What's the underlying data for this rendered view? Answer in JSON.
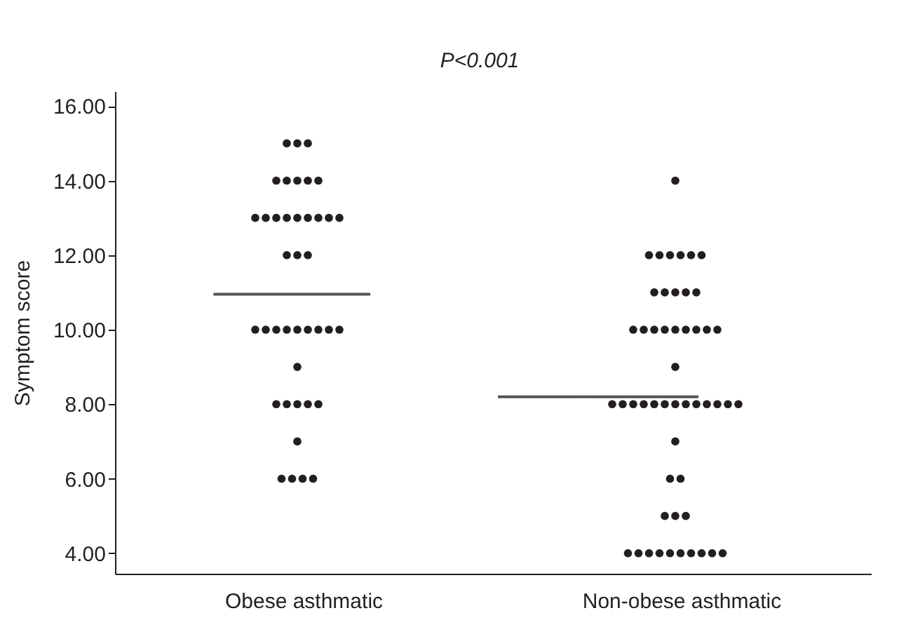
{
  "chart_data": {
    "type": "scatter",
    "ylabel": "Symptom score",
    "annotations": [
      "P<0.001"
    ],
    "categories": [
      "Obese asthmatic",
      "Non-obese asthmatic"
    ],
    "ylim": [
      3.45,
      16.4
    ],
    "yticks": [
      {
        "value": 4,
        "label": "4.00"
      },
      {
        "value": 6,
        "label": "6.00"
      },
      {
        "value": 8,
        "label": "8.00"
      },
      {
        "value": 10,
        "label": "10.00"
      },
      {
        "value": 12,
        "label": "12.00"
      },
      {
        "value": 14,
        "label": "14.00"
      },
      {
        "value": 16,
        "label": "16.00"
      }
    ],
    "grid": false,
    "legend": false,
    "marker": "circle",
    "series": [
      {
        "color": "#231f20",
        "x": [
          "Obese asthmatic",
          "Obese asthmatic",
          "Obese asthmatic",
          "Obese asthmatic",
          "Obese asthmatic",
          "Obese asthmatic",
          "Obese asthmatic",
          "Obese asthmatic",
          "Obese asthmatic",
          "Obese asthmatic",
          "Obese asthmatic",
          "Obese asthmatic",
          "Obese asthmatic",
          "Obese asthmatic",
          "Obese asthmatic",
          "Obese asthmatic",
          "Obese asthmatic",
          "Obese asthmatic",
          "Obese asthmatic",
          "Obese asthmatic",
          "Obese asthmatic",
          "Obese asthmatic",
          "Obese asthmatic",
          "Obese asthmatic",
          "Obese asthmatic",
          "Obese asthmatic",
          "Obese asthmatic",
          "Obese asthmatic",
          "Obese asthmatic",
          "Obese asthmatic",
          "Obese asthmatic",
          "Obese asthmatic",
          "Obese asthmatic",
          "Obese asthmatic",
          "Obese asthmatic",
          "Obese asthmatic",
          "Obese asthmatic",
          "Obese asthmatic",
          "Obese asthmatic",
          "Obese asthmatic"
        ],
        "values": [
          15,
          15,
          15,
          14,
          14,
          14,
          14,
          14,
          13,
          13,
          13,
          13,
          13,
          13,
          13,
          13,
          13,
          12,
          12,
          12,
          10,
          10,
          10,
          10,
          10,
          10,
          10,
          10,
          10,
          9,
          8,
          8,
          8,
          8,
          8,
          7,
          6,
          6,
          6,
          6
        ]
      },
      {
        "color": "#231f20",
        "x": [
          "Non-obese asthmatic",
          "Non-obese asthmatic",
          "Non-obese asthmatic",
          "Non-obese asthmatic",
          "Non-obese asthmatic",
          "Non-obese asthmatic",
          "Non-obese asthmatic",
          "Non-obese asthmatic",
          "Non-obese asthmatic",
          "Non-obese asthmatic",
          "Non-obese asthmatic",
          "Non-obese asthmatic",
          "Non-obese asthmatic",
          "Non-obese asthmatic",
          "Non-obese asthmatic",
          "Non-obese asthmatic",
          "Non-obese asthmatic",
          "Non-obese asthmatic",
          "Non-obese asthmatic",
          "Non-obese asthmatic",
          "Non-obese asthmatic",
          "Non-obese asthmatic",
          "Non-obese asthmatic",
          "Non-obese asthmatic",
          "Non-obese asthmatic",
          "Non-obese asthmatic",
          "Non-obese asthmatic",
          "Non-obese asthmatic",
          "Non-obese asthmatic",
          "Non-obese asthmatic",
          "Non-obese asthmatic",
          "Non-obese asthmatic",
          "Non-obese asthmatic",
          "Non-obese asthmatic",
          "Non-obese asthmatic",
          "Non-obese asthmatic",
          "Non-obese asthmatic",
          "Non-obese asthmatic",
          "Non-obese asthmatic",
          "Non-obese asthmatic",
          "Non-obese asthmatic",
          "Non-obese asthmatic",
          "Non-obese asthmatic",
          "Non-obese asthmatic",
          "Non-obese asthmatic",
          "Non-obese asthmatic",
          "Non-obese asthmatic",
          "Non-obese asthmatic",
          "Non-obese asthmatic",
          "Non-obese asthmatic",
          "Non-obese asthmatic"
        ],
        "values": [
          14,
          12,
          12,
          12,
          12,
          12,
          12,
          11,
          11,
          11,
          11,
          11,
          10,
          10,
          10,
          10,
          10,
          10,
          10,
          10,
          10,
          9,
          8,
          8,
          8,
          8,
          8,
          8,
          8,
          8,
          8,
          8,
          8,
          8,
          8,
          7,
          6,
          6,
          5,
          5,
          5,
          4,
          4,
          4,
          4,
          4,
          4,
          4,
          4,
          4,
          4
        ]
      }
    ],
    "ref_lines": [
      {
        "axis": "y",
        "value": 10.95,
        "color": "#555555"
      },
      {
        "axis": "y",
        "value": 8.2,
        "color": "#555555"
      }
    ]
  }
}
